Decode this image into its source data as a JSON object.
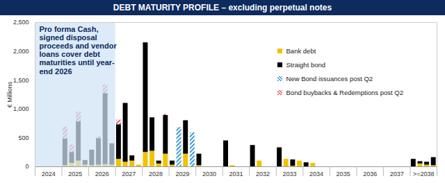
{
  "chart_data": {
    "type": "bar",
    "title": "DEBT MATURITY PROFILE – excluding perpetual notes",
    "y_label": "€ Millions",
    "stacked": true,
    "grid": false,
    "legend": "top-right",
    "x": [
      2025.125,
      2025.375,
      2025.625,
      2025.875,
      2026.125,
      2026.375,
      2026.625,
      2026.875,
      2027.125,
      2027.375,
      2027.625,
      2027.875,
      2028.125,
      2028.375,
      2028.625,
      2028.875,
      2029.125,
      2029.375,
      2029.625,
      2029.875,
      2030.125,
      2031.125,
      2031.375,
      2032.125,
      2032.375,
      2033.125,
      2033.375,
      2033.625,
      2033.875,
      2034.125,
      2034.375,
      2038.125,
      2038.375,
      2038.625,
      2038.875
    ],
    "series": [
      {
        "name": "Bank debt",
        "color": "#f2c200",
        "values": [
          20,
          60,
          100,
          30,
          20,
          30,
          40,
          30,
          130,
          80,
          100,
          30,
          250,
          270,
          50,
          220,
          30,
          0,
          220,
          0,
          20,
          0,
          20,
          0,
          100,
          0,
          130,
          10,
          100,
          0,
          60,
          0,
          50,
          30,
          20
        ]
      },
      {
        "name": "Straight bond",
        "color": "#000000",
        "values": [
          460,
          190,
          680,
          80,
          270,
          460,
          1230,
          370,
          600,
          1020,
          90,
          0,
          1900,
          580,
          50,
          670,
          70,
          0,
          580,
          0,
          200,
          450,
          0,
          370,
          0,
          330,
          0,
          110,
          0,
          70,
          0,
          130,
          40,
          50,
          140
        ]
      },
      {
        "name": "New Bond issuances post Q2",
        "color": "#3d9bd6",
        "marker": "hatched",
        "values": [
          0,
          0,
          0,
          0,
          0,
          0,
          0,
          0,
          0,
          0,
          0,
          0,
          0,
          0,
          0,
          0,
          0,
          680,
          0,
          590,
          0,
          0,
          0,
          0,
          0,
          0,
          0,
          0,
          0,
          0,
          0,
          0,
          0,
          0,
          0
        ]
      },
      {
        "name": "Bond buybacks & Redemptions post Q2",
        "color": "#e0606e",
        "marker": "hatched",
        "values": [
          210,
          130,
          170,
          0,
          0,
          30,
          150,
          0,
          80,
          0,
          0,
          0,
          0,
          0,
          0,
          20,
          0,
          0,
          0,
          0,
          0,
          0,
          0,
          0,
          0,
          0,
          0,
          0,
          0,
          0,
          0,
          0,
          0,
          0,
          0
        ]
      }
    ],
    "xlim": [
      2024,
      2039
    ],
    "xticks": [
      {
        "value": 2024.5,
        "label": "2024"
      },
      {
        "value": 2025.5,
        "label": "2025"
      },
      {
        "value": 2026.5,
        "label": "2026"
      },
      {
        "value": 2027.5,
        "label": "2027"
      },
      {
        "value": 2028.5,
        "label": "2028"
      },
      {
        "value": 2029.5,
        "label": "2029"
      },
      {
        "value": 2030.5,
        "label": "2030"
      },
      {
        "value": 2031.5,
        "label": "2031"
      },
      {
        "value": 2032.5,
        "label": "2032"
      },
      {
        "value": 2033.5,
        "label": "2033"
      },
      {
        "value": 2034.5,
        "label": "2034"
      },
      {
        "value": 2035.5,
        "label": "2035"
      },
      {
        "value": 2036.5,
        "label": "2036"
      },
      {
        "value": 2037.5,
        "label": "2037"
      },
      {
        "value": 2038.5,
        "label": ">=2038"
      }
    ],
    "ylim": [
      0,
      2500
    ],
    "yticks": [
      0,
      500,
      {
        "value": 1000,
        "label": "1,000"
      },
      {
        "value": 1500,
        "label": "1,500"
      },
      {
        "value": 2000,
        "label": "2,000"
      },
      {
        "value": 2500,
        "label": "2,500"
      }
    ],
    "annotations": [
      {
        "text": "Pro forma Cash, signed disposal proceeds and vendor loans cover debt maturities until year-end 2026",
        "x": [
          2024,
          2027
        ]
      }
    ]
  }
}
